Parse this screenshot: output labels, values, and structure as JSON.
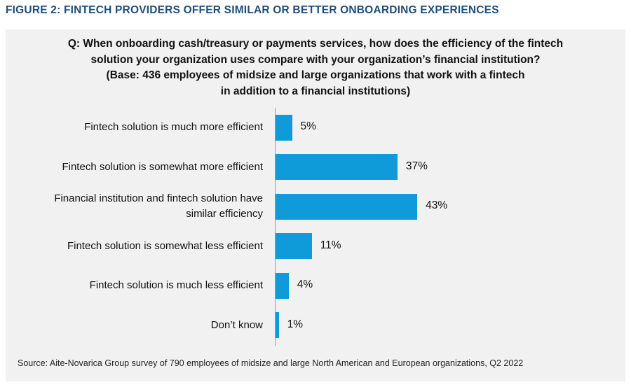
{
  "figure_title": "FIGURE 2: FINTECH PROVIDERS OFFER SIMILAR OR BETTER ONBOARDING EXPERIENCES",
  "question_lines": [
    "Q: When onboarding cash/treasury or payments services, how does the efficiency of the fintech",
    "solution your organization uses compare with your organization’s financial institution?",
    "(Base: 436 employees of midsize and large organizations that work with a fintech",
    "in addition to a financial institutions)"
  ],
  "source": "Source: Aite-Novarica Group survey of 790 employees of midsize and large North American and European organizations, Q2 2022",
  "colors": {
    "bar": "#0f9ad9",
    "title": "#1f4e79",
    "panel": "#f1f1f1"
  },
  "chart_data": {
    "type": "bar",
    "orientation": "horizontal",
    "categories": [
      [
        "Fintech solution is much more efficient"
      ],
      [
        "Fintech solution is somewhat more efficient"
      ],
      [
        "Financial institution and fintech solution have",
        "similar efficiency"
      ],
      [
        "Fintech solution is somewhat less efficient"
      ],
      [
        "Fintech solution is much less efficient"
      ],
      [
        "Don’t know"
      ]
    ],
    "values": [
      5,
      37,
      43,
      11,
      4,
      1
    ],
    "value_labels": [
      "5%",
      "37%",
      "43%",
      "11%",
      "4%",
      "1%"
    ],
    "unit": "%",
    "xlim": [
      0,
      100
    ],
    "grid": false,
    "legend": "none"
  }
}
